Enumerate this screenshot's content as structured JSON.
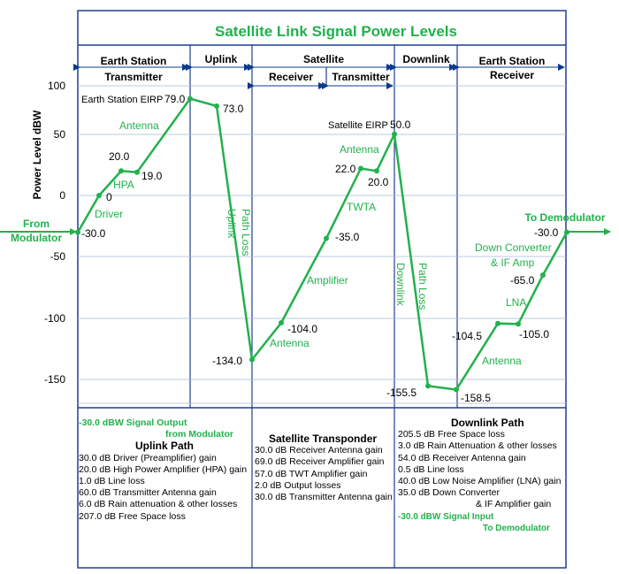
{
  "title": "Satellite Link Signal Power Levels",
  "sections": [
    {
      "lines": [
        "Earth Station",
        "Transmitter"
      ]
    },
    {
      "lines": [
        "Uplink"
      ]
    },
    {
      "lines": [
        "Satellite"
      ]
    },
    {
      "lines": [
        "Downlink"
      ]
    },
    {
      "lines": [
        "Earth Station",
        "Receiver"
      ]
    }
  ],
  "subsections": [
    "Receiver",
    "Transmitter"
  ],
  "y_axis": {
    "label": "Power Level  dBW",
    "ticks": [
      "100",
      "50",
      "0",
      "-50",
      "-100",
      "-150"
    ]
  },
  "inputs": {
    "from": [
      "From",
      "Modulator"
    ],
    "to": "To Demodulator"
  },
  "chart_data": {
    "type": "line",
    "ylabel": "Power Level  dBW",
    "ylim": [
      -170,
      120
    ],
    "series": [
      {
        "values": [
          -30.0,
          0,
          20.0,
          19.0,
          79.0,
          73.0,
          -134.0,
          -104.0,
          -35.0,
          22.0,
          20.0,
          50.0,
          -155.5,
          -158.5,
          -104.5,
          -105.0,
          -65.0,
          -30.0
        ]
      }
    ]
  },
  "value_labels": [
    "-30.0",
    "0",
    "20.0",
    "19.0",
    "79.0",
    "73.0",
    "-134.0",
    "-104.0",
    "-35.0",
    "22.0",
    "20.0",
    "50.0",
    "-155.5",
    "-158.5",
    "-104.5",
    "-105.0",
    "-65.0",
    "-30.0"
  ],
  "point_labels": {
    "es_eirp": "Earth Station EIRP",
    "sat_eirp": "Satellite EIRP"
  },
  "stage_labels": {
    "driver": "Driver",
    "hpa": "HPA",
    "antenna1": "Antenna",
    "uplink_path_loss": [
      "Uplink",
      "Path Loss"
    ],
    "antenna2": "Antenna",
    "amplifier": "Amplifier",
    "twta": "TWTA",
    "antenna3": "Antenna",
    "downlink_path_loss": [
      "Downlink",
      "Path Loss"
    ],
    "antenna4": "Antenna",
    "lna": "LNA",
    "down_converter": [
      "Down Converter",
      "& IF Amp"
    ]
  },
  "uplink_path": {
    "intro": [
      "-30.0 dBW Signal Output",
      "from Modulator"
    ],
    "heading": "Uplink Path",
    "lines": [
      "30.0 dB  Driver (Preamplifier) gain",
      "20.0 dB  High Power Amplifier (HPA) gain",
      "1.0 dB    Line loss",
      "60.0 dB Transmitter Antenna gain",
      "6.0 dB    Rain attenuation & other losses",
      "207.0 dB Free Space loss"
    ]
  },
  "satellite_transponder": {
    "heading": "Satellite Transponder",
    "lines": [
      "30.0 dB  Receiver Antenna gain",
      "69.0 dB Receiver Amplifier gain",
      "57.0 dB TWT Amplifier gain",
      "2.0 dB    Output losses",
      "30.0 dB Transmitter Antenna gain"
    ]
  },
  "downlink_path": {
    "heading": "Downlink Path",
    "lines": [
      "205.5 dB Free Space loss",
      "3.0 dB    Rain Attenuation & other losses",
      "54.0 dB Receiver Antenna gain",
      "0.5 dB    Line loss",
      "40.0 dB Low Noise Amplifier (LNA) gain",
      "35.0 dB Down Converter",
      "& IF Amplifier gain"
    ],
    "outro": [
      "-30.0 dBW Signal Input",
      "To Demodulator"
    ]
  }
}
